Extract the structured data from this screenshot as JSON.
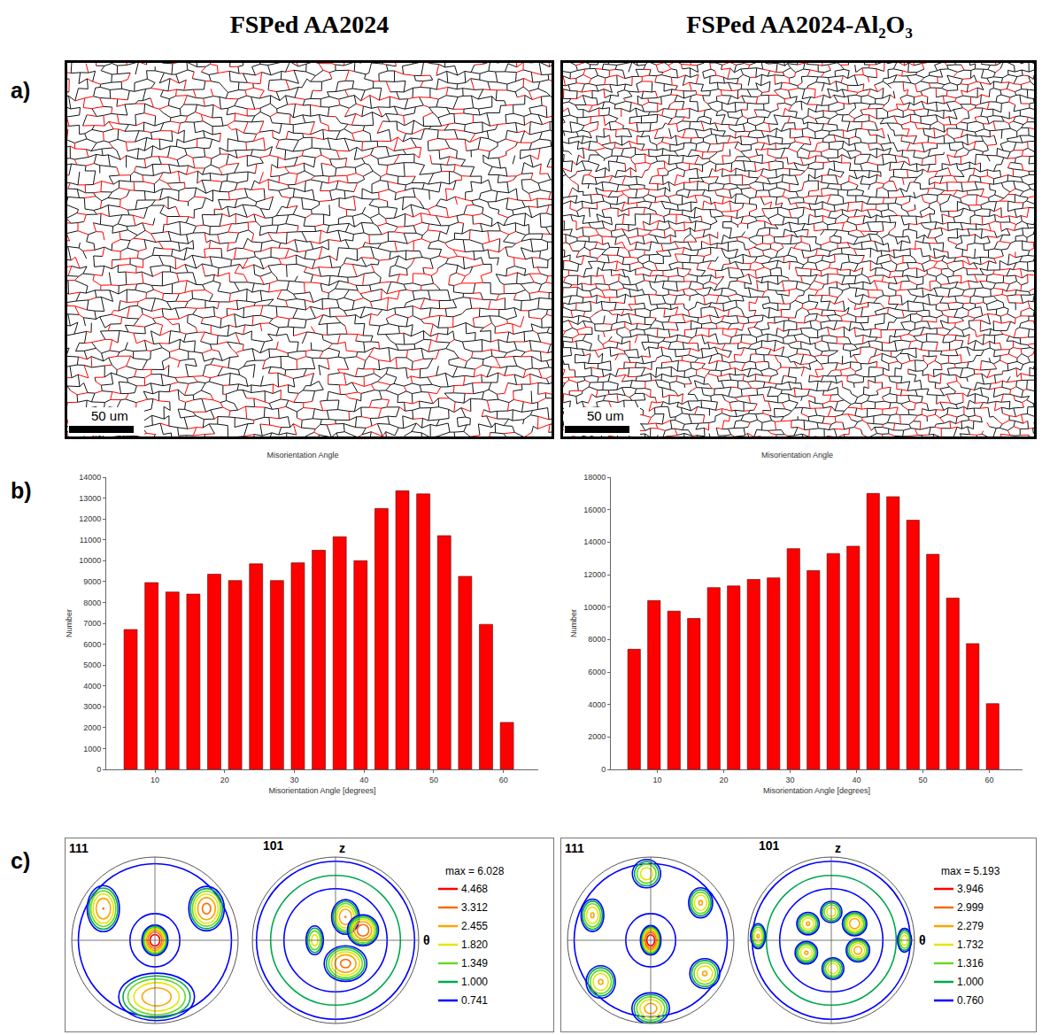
{
  "headers": [
    "FSPed AA2024",
    "FSPed AA2024-Al₂O₃"
  ],
  "row_labels": [
    "a)",
    "b)",
    "c)"
  ],
  "maps": [
    {
      "scale_bar": "50 um"
    },
    {
      "scale_bar": "50 um"
    }
  ],
  "chart_data": [
    {
      "type": "bar",
      "title": "Misorientation Angle",
      "x_label": "Misorientation Angle [degrees]",
      "y_label": "Number",
      "x": [
        6.5,
        9.5,
        12.5,
        15.5,
        18.5,
        21.5,
        24.5,
        27.5,
        30.5,
        33.5,
        36.5,
        39.5,
        42.5,
        45.5,
        48.5,
        51.5,
        54.5,
        57.5,
        60.5
      ],
      "values": [
        6700,
        8950,
        8500,
        8400,
        9350,
        9050,
        9850,
        9050,
        9900,
        10500,
        11150,
        10000,
        12500,
        13350,
        13200,
        11200,
        9250,
        6950,
        2250
      ],
      "color": "#ff0000",
      "xlim": [
        3,
        65
      ],
      "xticks": [
        10,
        20,
        30,
        40,
        50,
        60
      ],
      "ylim": [
        0,
        14000
      ],
      "yticks": [
        0,
        1000,
        2000,
        3000,
        4000,
        5000,
        6000,
        7000,
        8000,
        9000,
        10000,
        11000,
        12000,
        13000,
        14000
      ],
      "grid": false
    },
    {
      "type": "bar",
      "title": "Misorientation Angle",
      "x_label": "Misorientation Angle [degrees]",
      "y_label": "Number",
      "x": [
        6.5,
        9.5,
        12.5,
        15.5,
        18.5,
        21.5,
        24.5,
        27.5,
        30.5,
        33.5,
        36.5,
        39.5,
        42.5,
        45.5,
        48.5,
        51.5,
        54.5,
        57.5,
        60.5
      ],
      "values": [
        7400,
        10400,
        9750,
        9300,
        11200,
        11300,
        11700,
        11800,
        13600,
        12250,
        13300,
        13750,
        17000,
        16800,
        15350,
        13250,
        10550,
        7750,
        4050
      ],
      "color": "#ff0000",
      "xlim": [
        3,
        65
      ],
      "xticks": [
        10,
        20,
        30,
        40,
        50,
        60
      ],
      "ylim": [
        0,
        18000
      ],
      "yticks": [
        0,
        2000,
        4000,
        6000,
        8000,
        10000,
        12000,
        14000,
        16000,
        18000
      ],
      "grid": false
    }
  ],
  "pole_figures": [
    {
      "labels": [
        "111",
        "101"
      ],
      "axis_labels": [
        "z",
        "θ"
      ],
      "max": 6.028,
      "max_label": "max = 6.028",
      "levels": [
        {
          "value": 4.468,
          "label": "4.468",
          "color": "#ff0000"
        },
        {
          "value": 3.312,
          "label": "3.312",
          "color": "#ff6a00"
        },
        {
          "value": 2.455,
          "label": "2.455",
          "color": "#ffa500"
        },
        {
          "value": 1.82,
          "label": "1.820",
          "color": "#e6e600"
        },
        {
          "value": 1.349,
          "label": "1.349",
          "color": "#66d922"
        },
        {
          "value": 1.0,
          "label": "1.000",
          "color": "#00a84f"
        },
        {
          "value": 0.741,
          "label": "0.741",
          "color": "#0000ff"
        }
      ]
    },
    {
      "labels": [
        "111",
        "101"
      ],
      "axis_labels": [
        "z",
        "θ"
      ],
      "max": 5.193,
      "max_label": "max = 5.193",
      "levels": [
        {
          "value": 3.946,
          "label": "3.946",
          "color": "#ff0000"
        },
        {
          "value": 2.999,
          "label": "2.999",
          "color": "#ff6a00"
        },
        {
          "value": 2.279,
          "label": "2.279",
          "color": "#ffa500"
        },
        {
          "value": 1.732,
          "label": "1.732",
          "color": "#e6e600"
        },
        {
          "value": 1.316,
          "label": "1.316",
          "color": "#66d922"
        },
        {
          "value": 1.0,
          "label": "1.000",
          "color": "#00a84f"
        },
        {
          "value": 0.76,
          "label": "0.760",
          "color": "#0000ff"
        }
      ]
    }
  ]
}
